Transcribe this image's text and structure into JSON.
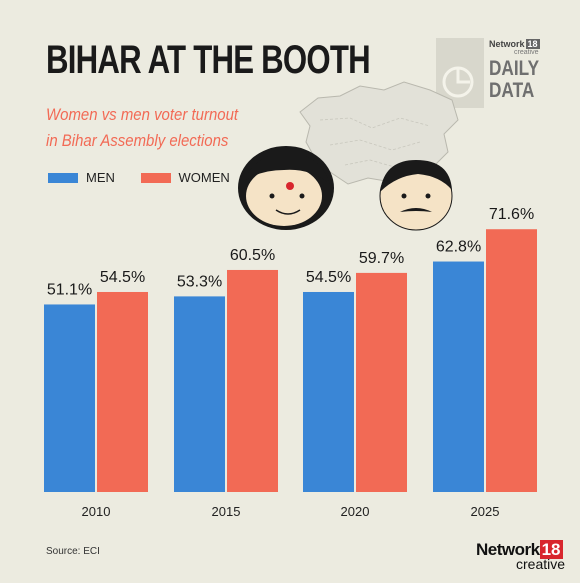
{
  "header": {
    "title": "BIHAR AT THE BOOTH",
    "subtitle_line1": "Women vs men voter turnout",
    "subtitle_line2": "in Bihar Assembly elections"
  },
  "brand": {
    "network": "Network",
    "num": "18",
    "creative": "creative",
    "daily": "DAILY",
    "data": "DATA"
  },
  "legend": {
    "men": "MEN",
    "women": "WOMEN"
  },
  "source": "Source: ECI",
  "footer": {
    "network": "Network",
    "num": "18",
    "creative": "creative"
  },
  "colors": {
    "men": "#3a86d6",
    "women": "#f26a55",
    "background": "#ecebe0"
  },
  "chart_data": {
    "type": "bar",
    "categories": [
      "2010",
      "2015",
      "2020",
      "2025"
    ],
    "series": [
      {
        "name": "MEN",
        "values": [
          51.1,
          53.3,
          54.5,
          62.8
        ],
        "labels": [
          "51.1%",
          "53.3%",
          "54.5%",
          "62.8%"
        ]
      },
      {
        "name": "WOMEN",
        "values": [
          54.5,
          60.5,
          59.7,
          71.6
        ],
        "labels": [
          "54.5%",
          "60.5%",
          "59.7%",
          "71.6%"
        ]
      }
    ],
    "title": "BIHAR AT THE BOOTH",
    "xlabel": "",
    "ylabel": "",
    "ylim": [
      0,
      100
    ],
    "grid": false,
    "legend_position": "top-left"
  }
}
